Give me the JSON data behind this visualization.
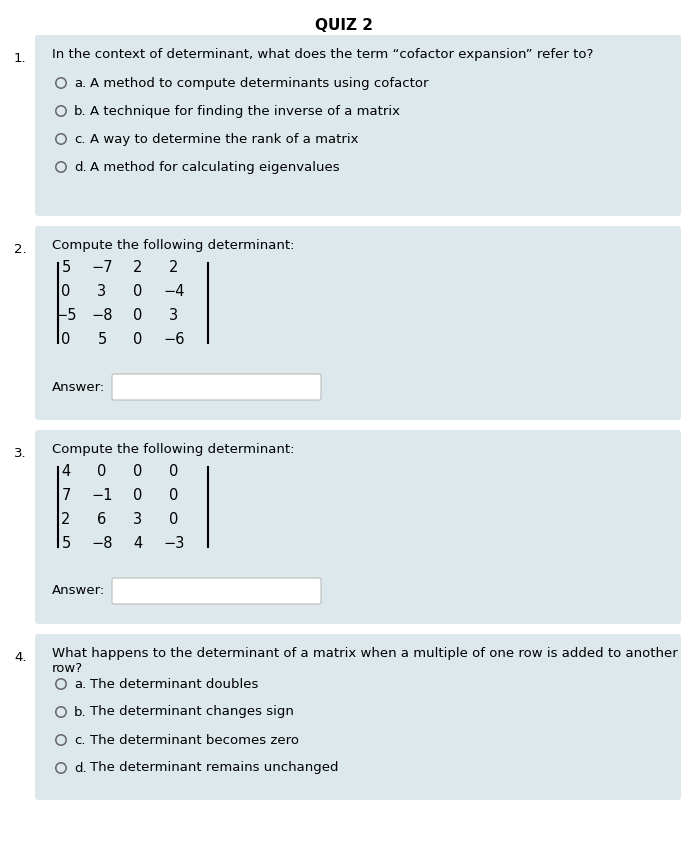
{
  "title": "QUIZ 2",
  "background_color": "#ffffff",
  "box_color": "#dde8ec",
  "title_fontsize": 11,
  "question_fontsize": 9.5,
  "option_fontsize": 9.5,
  "matrix_fontsize": 10.5,
  "questions": [
    {
      "number": "1.",
      "text": "In the context of determinant, what does the term “cofactor expansion” refer to?",
      "type": "multiple_choice",
      "options": [
        [
          "a.",
          "A method to compute determinants using cofactor"
        ],
        [
          "b.",
          "A technique for finding the inverse of a matrix"
        ],
        [
          "c.",
          "A way to determine the rank of a matrix"
        ],
        [
          "d.",
          "A method for calculating eigenvalues"
        ]
      ]
    },
    {
      "number": "2.",
      "text": "Compute the following determinant:",
      "type": "matrix",
      "matrix": [
        [
          "5",
          "−7",
          "2",
          "2"
        ],
        [
          "0",
          "3",
          "0",
          "−4"
        ],
        [
          "−5",
          "−8",
          "0",
          "3"
        ],
        [
          "0",
          "5",
          "0",
          "−6"
        ]
      ]
    },
    {
      "number": "3.",
      "text": "Compute the following determinant:",
      "type": "matrix",
      "matrix": [
        [
          "4",
          "0",
          "0",
          "0"
        ],
        [
          "7",
          "−1",
          "0",
          "0"
        ],
        [
          "2",
          "6",
          "3",
          "0"
        ],
        [
          "5",
          "−8",
          "4",
          "−3"
        ]
      ]
    },
    {
      "number": "4.",
      "text": "What happens to the determinant of a matrix when a multiple of one row is added to another row?",
      "type": "multiple_choice",
      "options": [
        [
          "a.",
          "The determinant doubles"
        ],
        [
          "b.",
          "The determinant changes sign"
        ],
        [
          "c.",
          "The determinant becomes zero"
        ],
        [
          "d.",
          "The determinant remains unchanged"
        ]
      ]
    }
  ]
}
